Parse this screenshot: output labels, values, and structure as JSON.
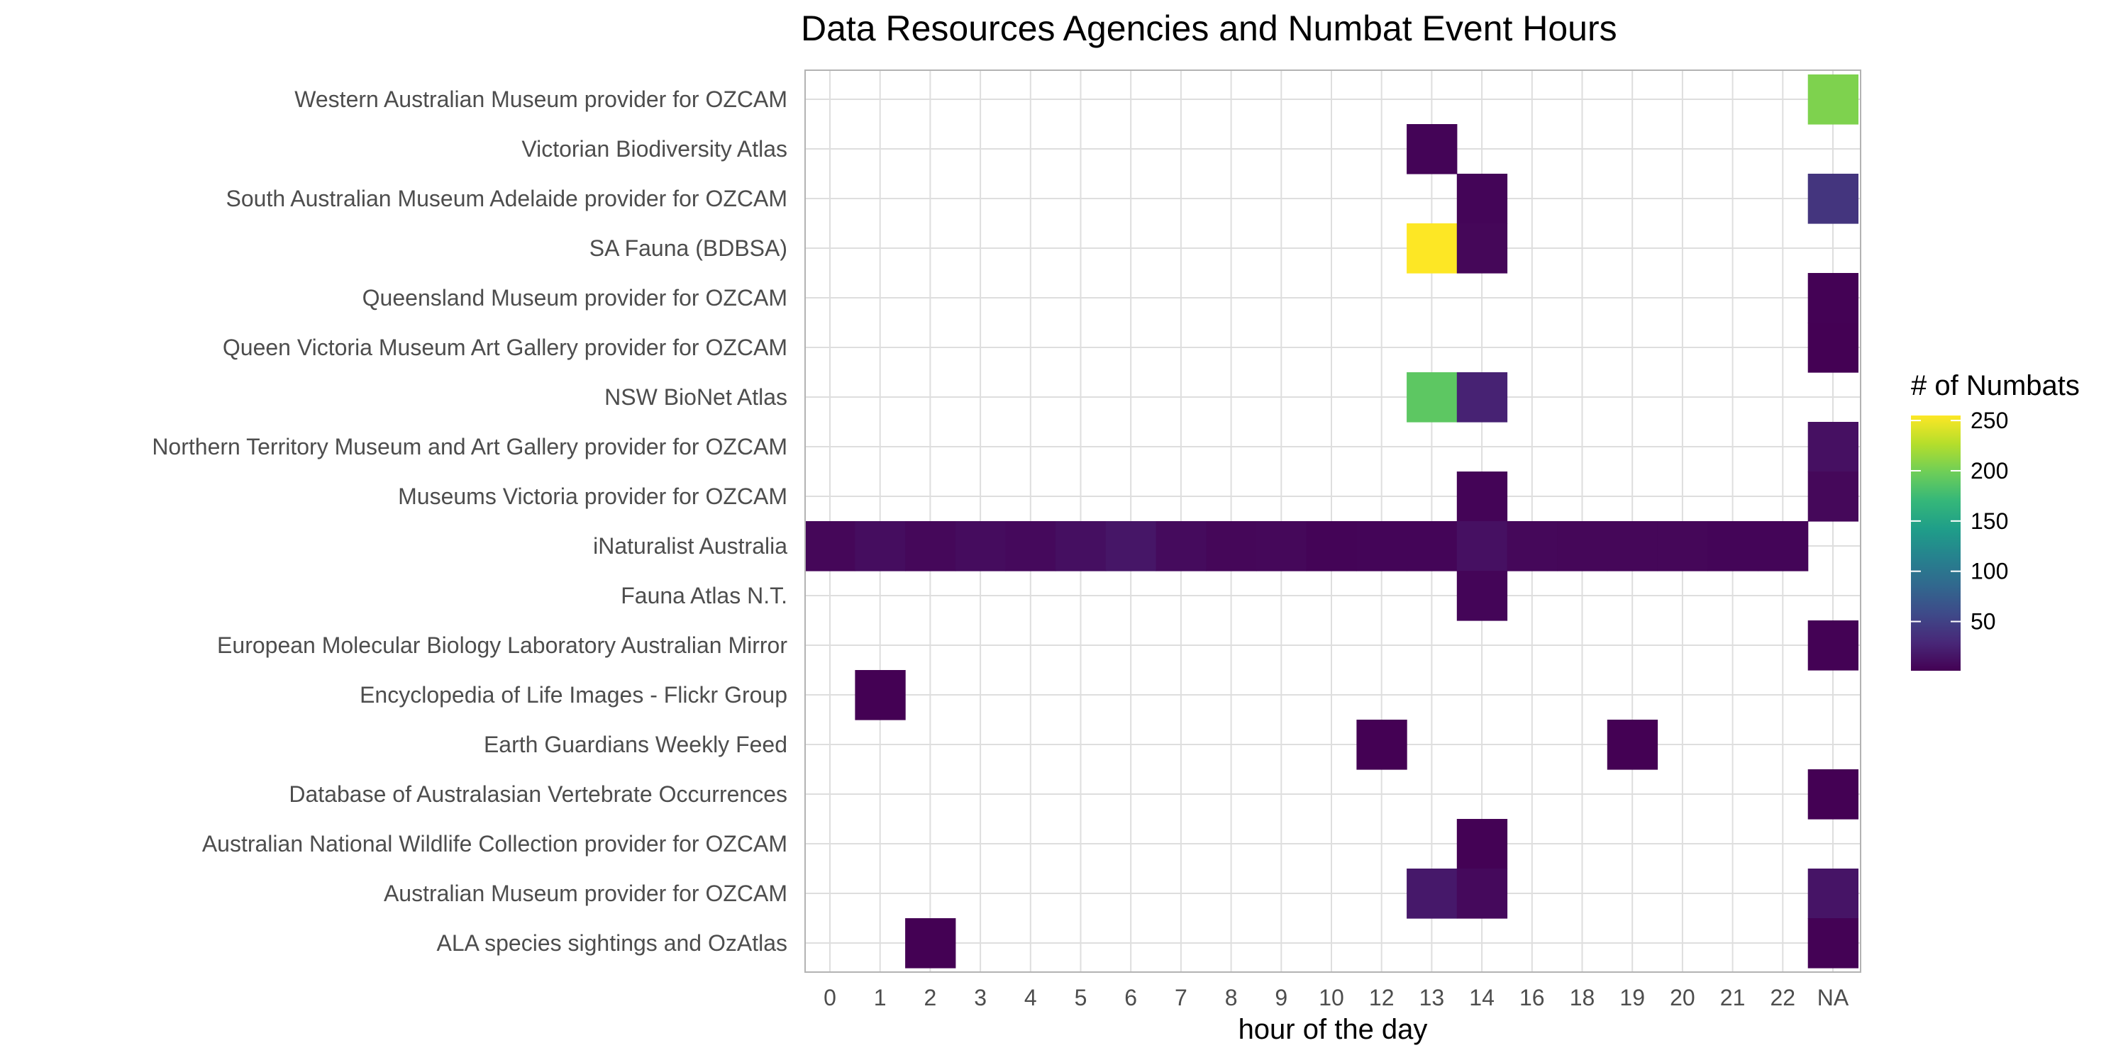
{
  "chart_data": {
    "type": "heatmap",
    "title": "Data Resources Agencies and Numbat Event Hours",
    "xlabel": "hour of the day",
    "ylabel": "",
    "x_categories": [
      "0",
      "1",
      "2",
      "3",
      "4",
      "5",
      "6",
      "7",
      "8",
      "9",
      "10",
      "12",
      "13",
      "14",
      "16",
      "18",
      "19",
      "20",
      "21",
      "22",
      "NA"
    ],
    "y_categories": [
      "Western Australian Museum provider for OZCAM",
      "Victorian Biodiversity Atlas",
      "South Australian Museum Adelaide provider for OZCAM",
      "SA Fauna (BDBSA)",
      "Queensland Museum provider for OZCAM",
      "Queen Victoria Museum Art Gallery provider for OZCAM",
      "NSW BioNet Atlas",
      "Northern Territory Museum and Art Gallery provider for OZCAM",
      "Museums Victoria provider for OZCAM",
      "iNaturalist Australia",
      "Fauna Atlas N.T.",
      "European Molecular Biology Laboratory Australian Mirror",
      "Encyclopedia of Life Images - Flickr Group",
      "Earth Guardians Weekly Feed",
      "Database of Australasian Vertebrate Occurrences",
      "Australian National Wildlife Collection provider for OZCAM",
      "Australian Museum provider for OZCAM",
      "ALA species sightings and OzAtlas"
    ],
    "cells": [
      {
        "y": "Western Australian Museum provider for OZCAM",
        "x": "NA",
        "value": 205
      },
      {
        "y": "Victorian Biodiversity Atlas",
        "x": "13",
        "value": 3
      },
      {
        "y": "South Australian Museum Adelaide provider for OZCAM",
        "x": "14",
        "value": 4
      },
      {
        "y": "South Australian Museum Adelaide provider for OZCAM",
        "x": "NA",
        "value": 40
      },
      {
        "y": "SA Fauna (BDBSA)",
        "x": "13",
        "value": 255
      },
      {
        "y": "SA Fauna (BDBSA)",
        "x": "14",
        "value": 5
      },
      {
        "y": "Queensland Museum provider for OZCAM",
        "x": "NA",
        "value": 2
      },
      {
        "y": "Queen Victoria Museum Art Gallery provider for OZCAM",
        "x": "NA",
        "value": 1
      },
      {
        "y": "NSW BioNet Atlas",
        "x": "13",
        "value": 190
      },
      {
        "y": "NSW BioNet Atlas",
        "x": "14",
        "value": 25
      },
      {
        "y": "Northern Territory Museum and Art Gallery provider for OZCAM",
        "x": "NA",
        "value": 12
      },
      {
        "y": "Museums Victoria provider for OZCAM",
        "x": "14",
        "value": 3
      },
      {
        "y": "Museums Victoria provider for OZCAM",
        "x": "NA",
        "value": 6
      },
      {
        "y": "iNaturalist Australia",
        "x": "0",
        "value": 5
      },
      {
        "y": "iNaturalist Australia",
        "x": "1",
        "value": 10
      },
      {
        "y": "iNaturalist Australia",
        "x": "2",
        "value": 6
      },
      {
        "y": "iNaturalist Australia",
        "x": "3",
        "value": 9
      },
      {
        "y": "iNaturalist Australia",
        "x": "4",
        "value": 7
      },
      {
        "y": "iNaturalist Australia",
        "x": "5",
        "value": 11
      },
      {
        "y": "iNaturalist Australia",
        "x": "6",
        "value": 16
      },
      {
        "y": "iNaturalist Australia",
        "x": "7",
        "value": 8
      },
      {
        "y": "iNaturalist Australia",
        "x": "8",
        "value": 5
      },
      {
        "y": "iNaturalist Australia",
        "x": "9",
        "value": 6
      },
      {
        "y": "iNaturalist Australia",
        "x": "10",
        "value": 3
      },
      {
        "y": "iNaturalist Australia",
        "x": "12",
        "value": 4
      },
      {
        "y": "iNaturalist Australia",
        "x": "13",
        "value": 4
      },
      {
        "y": "iNaturalist Australia",
        "x": "14",
        "value": 12
      },
      {
        "y": "iNaturalist Australia",
        "x": "16",
        "value": 6
      },
      {
        "y": "iNaturalist Australia",
        "x": "18",
        "value": 5
      },
      {
        "y": "iNaturalist Australia",
        "x": "19",
        "value": 5
      },
      {
        "y": "iNaturalist Australia",
        "x": "20",
        "value": 5
      },
      {
        "y": "iNaturalist Australia",
        "x": "21",
        "value": 4
      },
      {
        "y": "iNaturalist Australia",
        "x": "22",
        "value": 4
      },
      {
        "y": "Fauna Atlas N.T.",
        "x": "14",
        "value": 4
      },
      {
        "y": "European Molecular Biology Laboratory Australian Mirror",
        "x": "NA",
        "value": 2
      },
      {
        "y": "Encyclopedia of Life Images - Flickr Group",
        "x": "1",
        "value": 1
      },
      {
        "y": "Earth Guardians Weekly Feed",
        "x": "12",
        "value": 1
      },
      {
        "y": "Earth Guardians Weekly Feed",
        "x": "19",
        "value": 1
      },
      {
        "y": "Database of Australasian Vertebrate Occurrences",
        "x": "NA",
        "value": 1
      },
      {
        "y": "Australian National Wildlife Collection provider for OZCAM",
        "x": "14",
        "value": 2
      },
      {
        "y": "Australian Museum provider for OZCAM",
        "x": "13",
        "value": 18
      },
      {
        "y": "Australian Museum provider for OZCAM",
        "x": "14",
        "value": 7
      },
      {
        "y": "Australian Museum provider for OZCAM",
        "x": "NA",
        "value": 15
      },
      {
        "y": "ALA species sightings and OzAtlas",
        "x": "2",
        "value": 1
      },
      {
        "y": "ALA species sightings and OzAtlas",
        "x": "NA",
        "value": 2
      }
    ],
    "legend": {
      "title": "# of Numbats",
      "ticks": [
        250,
        200,
        150,
        100,
        50
      ],
      "range": [
        1,
        255
      ],
      "placement": "right",
      "palette": "viridis"
    },
    "grid": true
  },
  "colors": {
    "viridis": [
      "#440154",
      "#482878",
      "#3e4a89",
      "#31688e",
      "#26828e",
      "#1f9e89",
      "#35b779",
      "#6ece58",
      "#b5de2b",
      "#fde725"
    ],
    "grid": "#dedede",
    "panel_border": "#b3b3b3"
  }
}
